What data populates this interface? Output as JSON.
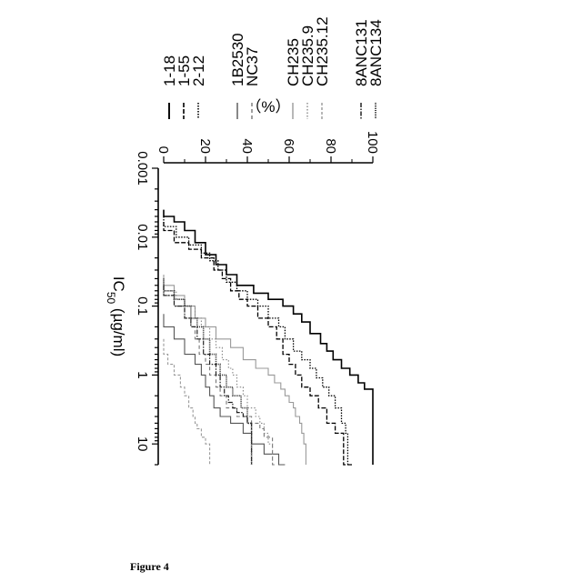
{
  "figure_label": "Figure 4",
  "chart_data": {
    "type": "line",
    "orientation": "rotated-90-clockwise",
    "xlabel": "IC50 (µg/ml)",
    "xlabel_main": "IC",
    "xlabel_sub": "50",
    "xlabel_unit": " (µg/ml)",
    "ylabel": "（%）",
    "x_scale": "log",
    "xlim": [
      0.001,
      20
    ],
    "ylim": [
      0,
      100
    ],
    "x_ticks": [
      0.001,
      0.01,
      0.1,
      1,
      10
    ],
    "x_tick_labels": [
      "0.001",
      "0.01",
      "0.1",
      "1",
      "10"
    ],
    "y_ticks": [
      0,
      20,
      40,
      60,
      80,
      100
    ],
    "y_tick_labels": [
      "0",
      "20",
      "40",
      "60",
      "80",
      "100"
    ],
    "legend_position": "right",
    "series": [
      {
        "name": "1-18",
        "color": "#000000",
        "dash": "",
        "width": 1.6,
        "x": [
          0.004,
          0.005,
          0.006,
          0.008,
          0.012,
          0.018,
          0.025,
          0.035,
          0.05,
          0.065,
          0.08,
          0.1,
          0.13,
          0.17,
          0.25,
          0.35,
          0.45,
          0.6,
          0.8,
          1.0,
          1.3,
          1.6,
          20
        ],
        "y": [
          0,
          5,
          10,
          15,
          20,
          25,
          30,
          35,
          43,
          50,
          57,
          62,
          66,
          70,
          75,
          78,
          81,
          85,
          89,
          93,
          96,
          100,
          100
        ]
      },
      {
        "name": "1-55",
        "color": "#000000",
        "dash": "5,2",
        "width": 1.3,
        "x": [
          0.006,
          0.008,
          0.012,
          0.015,
          0.02,
          0.03,
          0.04,
          0.06,
          0.08,
          0.1,
          0.15,
          0.2,
          0.3,
          0.5,
          0.7,
          1.0,
          1.5,
          2.0,
          3.0,
          5.0,
          7.0,
          20
        ],
        "y": [
          0,
          5,
          12,
          18,
          24,
          28,
          32,
          36,
          40,
          45,
          50,
          54,
          57,
          60,
          63,
          66,
          70,
          74,
          78,
          82,
          86,
          90
        ]
      },
      {
        "name": "2-12",
        "color": "#000000",
        "dash": "1.5,1.5",
        "width": 1.3,
        "x": [
          0.005,
          0.007,
          0.01,
          0.013,
          0.017,
          0.022,
          0.03,
          0.045,
          0.06,
          0.08,
          0.1,
          0.15,
          0.2,
          0.3,
          0.45,
          0.6,
          0.8,
          1.1,
          1.5,
          2.0,
          3.0,
          5.0,
          7.0,
          20
        ],
        "y": [
          0,
          6,
          12,
          18,
          22,
          26,
          30,
          35,
          40,
          45,
          50,
          55,
          58,
          62,
          66,
          70,
          73,
          76,
          79,
          82,
          85,
          87,
          88,
          88
        ]
      },
      {
        "name": "1B2530",
        "color": "#555555",
        "dash": "",
        "width": 1.1,
        "x": [
          0.13,
          0.2,
          0.3,
          0.5,
          0.7,
          1.0,
          1.5,
          2.0,
          3.0,
          4.0,
          5.0,
          7.0,
          10.0,
          14.0,
          20
        ],
        "y": [
          0,
          5,
          10,
          15,
          18,
          20,
          22,
          24,
          27,
          32,
          38,
          42,
          48,
          55,
          58
        ]
      },
      {
        "name": "NC37",
        "color": "#777777",
        "dash": "4,3",
        "width": 1.1,
        "x": [
          0.05,
          0.07,
          0.1,
          0.15,
          0.2,
          0.3,
          0.5,
          0.7,
          1.0,
          1.5,
          2.0,
          3.0,
          4.0,
          5.0,
          6.0,
          8.0,
          20
        ],
        "y": [
          0,
          5,
          10,
          13,
          15,
          17,
          20,
          22,
          25,
          27,
          30,
          35,
          42,
          46,
          48,
          52,
          54
        ]
      },
      {
        "name": "CH235",
        "color": "#999999",
        "dash": "",
        "width": 1.1,
        "x": [
          0.035,
          0.05,
          0.07,
          0.1,
          0.15,
          0.2,
          0.3,
          0.4,
          0.6,
          0.8,
          1.0,
          1.3,
          1.6,
          2.0,
          2.5,
          3.0,
          4.0,
          5.0,
          7.0,
          10.0,
          20
        ],
        "y": [
          0,
          5,
          10,
          15,
          20,
          25,
          32,
          38,
          44,
          50,
          53,
          56,
          58,
          60,
          62,
          63,
          65,
          66,
          67,
          68,
          68
        ]
      },
      {
        "name": "CH235.9",
        "color": "#888888",
        "dash": "1.5,2",
        "width": 1.1,
        "x": [
          0.04,
          0.06,
          0.08,
          0.1,
          0.15,
          0.2,
          0.3,
          0.4,
          0.6,
          0.8,
          1.0,
          1.5,
          2.0,
          3.0,
          4.0,
          5.0,
          7.0,
          10.0,
          20
        ],
        "y": [
          0,
          6,
          10,
          15,
          18,
          22,
          25,
          28,
          31,
          33,
          35,
          38,
          40,
          44,
          46,
          48,
          50,
          52,
          52
        ]
      },
      {
        "name": "CH235.12",
        "color": "#999999",
        "dash": "3,2",
        "width": 1.1,
        "x": [
          0.3,
          0.5,
          0.7,
          1.0,
          1.5,
          2.0,
          3.0,
          4.0,
          5.0,
          6.0,
          8.0,
          10.0,
          14.0,
          20
        ],
        "y": [
          0,
          2,
          5,
          8,
          10,
          12,
          14,
          15,
          16,
          18,
          20,
          22,
          22,
          22
        ]
      },
      {
        "name": "8ANC131",
        "color": "#222222",
        "dash": "5,1.5,1.5,1.5",
        "width": 1.2,
        "x": [
          0.05,
          0.07,
          0.1,
          0.15,
          0.2,
          0.3,
          0.5,
          0.7,
          1.0,
          1.5,
          2.0,
          2.5,
          3.0,
          3.5,
          4.0,
          5.0,
          7.0,
          10.0,
          20
        ],
        "y": [
          0,
          5,
          10,
          13,
          16,
          19,
          22,
          25,
          27,
          29,
          31,
          33,
          35,
          38,
          40,
          42,
          42,
          42,
          42
        ]
      },
      {
        "name": "8ANC134",
        "color": "#333333",
        "dash": "1,1",
        "width": 1.6,
        "x": [
          0.04,
          0.06,
          0.08,
          0.1,
          0.15,
          0.2,
          0.3,
          0.5,
          0.7,
          1.0,
          1.5,
          2.0,
          3.0,
          5.0,
          7.0,
          10.0,
          20
        ],
        "y": [
          0,
          5,
          10,
          13,
          16,
          19,
          22,
          25,
          27,
          30,
          33,
          37,
          40,
          42,
          42,
          42,
          42
        ]
      }
    ]
  }
}
